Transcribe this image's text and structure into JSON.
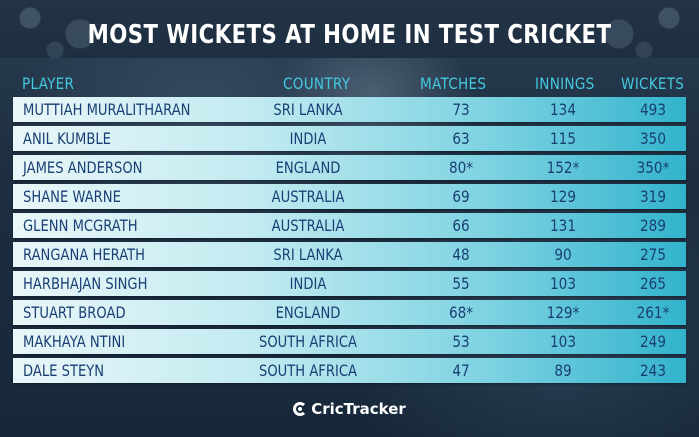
{
  "title": "Most wickets at home in Test cricket",
  "columns": {
    "player": "Player",
    "country": "Country",
    "matches": "Matches",
    "innings": "Innings",
    "wickets": "Wickets"
  },
  "rows": [
    {
      "player": "Muttiah Muralitharan",
      "country": "Sri Lanka",
      "matches": "73",
      "innings": "134",
      "wickets": "493"
    },
    {
      "player": "Anil Kumble",
      "country": "India",
      "matches": "63",
      "innings": "115",
      "wickets": "350"
    },
    {
      "player": "James Anderson",
      "country": "England",
      "matches": "80*",
      "innings": "152*",
      "wickets": "350*"
    },
    {
      "player": "Shane Warne",
      "country": "Australia",
      "matches": "69",
      "innings": "129",
      "wickets": "319"
    },
    {
      "player": "Glenn McGrath",
      "country": "Australia",
      "matches": "66",
      "innings": "131",
      "wickets": "289"
    },
    {
      "player": "Rangana Herath",
      "country": "Sri Lanka",
      "matches": "48",
      "innings": "90",
      "wickets": "275"
    },
    {
      "player": "Harbhajan Singh",
      "country": "India",
      "matches": "55",
      "innings": "103",
      "wickets": "265"
    },
    {
      "player": "Stuart Broad",
      "country": "England",
      "matches": "68*",
      "innings": "129*",
      "wickets": "261*"
    },
    {
      "player": "Makhaya Ntini",
      "country": "South Africa",
      "matches": "53",
      "innings": "103",
      "wickets": "249"
    },
    {
      "player": "Dale Steyn",
      "country": "South Africa",
      "matches": "47",
      "innings": "89",
      "wickets": "243"
    }
  ],
  "footer": {
    "brand": "CricTracker",
    "brand_icon": "crictracker-logo-icon"
  },
  "colors": {
    "header_text": "#43c9df",
    "row_text": "#1a3f74",
    "background": "#1c2c3d"
  }
}
